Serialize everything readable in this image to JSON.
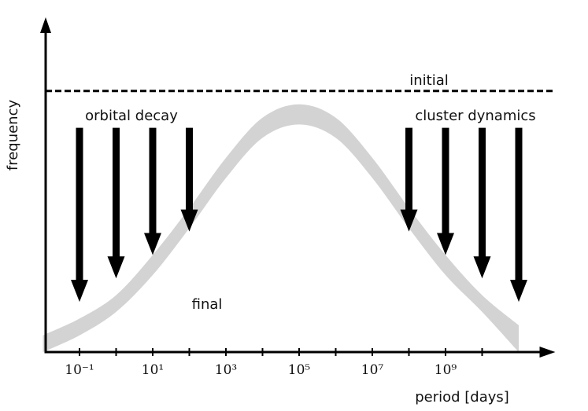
{
  "chart_data": {
    "type": "band",
    "xlabel": "period [days]",
    "ylabel": "frequency",
    "xscale": "log",
    "xlim": [
      0.01,
      1000000000000
    ],
    "ylim": [
      0,
      1
    ],
    "xticks": [
      {
        "value": 0.1,
        "label": "10⁻¹"
      },
      {
        "value": 10,
        "label": "10¹"
      },
      {
        "value": 1000,
        "label": "10³"
      },
      {
        "value": 100000,
        "label": "10⁵"
      },
      {
        "value": 10000000,
        "label": "10⁷"
      },
      {
        "value": 1000000000,
        "label": "10⁹"
      }
    ],
    "xminorticks": [
      1,
      100,
      10000,
      1000000,
      100000000,
      10000000000
    ],
    "initial": {
      "label": "initial",
      "value": 0.78
    },
    "band": {
      "label": "final",
      "color": "#d3d3d3",
      "x": [
        0.01,
        0.1,
        1,
        10,
        100,
        1000,
        10000,
        100000,
        1000000,
        10000000,
        100000000,
        1000000000,
        10000000000,
        100000000000
      ],
      "upper": [
        0.05,
        0.1,
        0.17,
        0.29,
        0.43,
        0.58,
        0.7,
        0.74,
        0.7,
        0.58,
        0.43,
        0.29,
        0.17,
        0.08
      ],
      "lower": [
        0,
        0.05,
        0.12,
        0.23,
        0.37,
        0.52,
        0.64,
        0.68,
        0.64,
        0.52,
        0.37,
        0.23,
        0.12,
        0
      ]
    },
    "orbital_decay": {
      "label": "orbital decay",
      "from": 0.67,
      "x": [
        0.1,
        1,
        10,
        100
      ],
      "to": [
        0.15,
        0.22,
        0.29,
        0.36
      ]
    },
    "cluster_dynamics": {
      "label": "cluster dynamics",
      "from": 0.67,
      "x": [
        100000000,
        1000000000,
        10000000000,
        100000000000
      ],
      "to": [
        0.36,
        0.29,
        0.22,
        0.15
      ]
    }
  }
}
